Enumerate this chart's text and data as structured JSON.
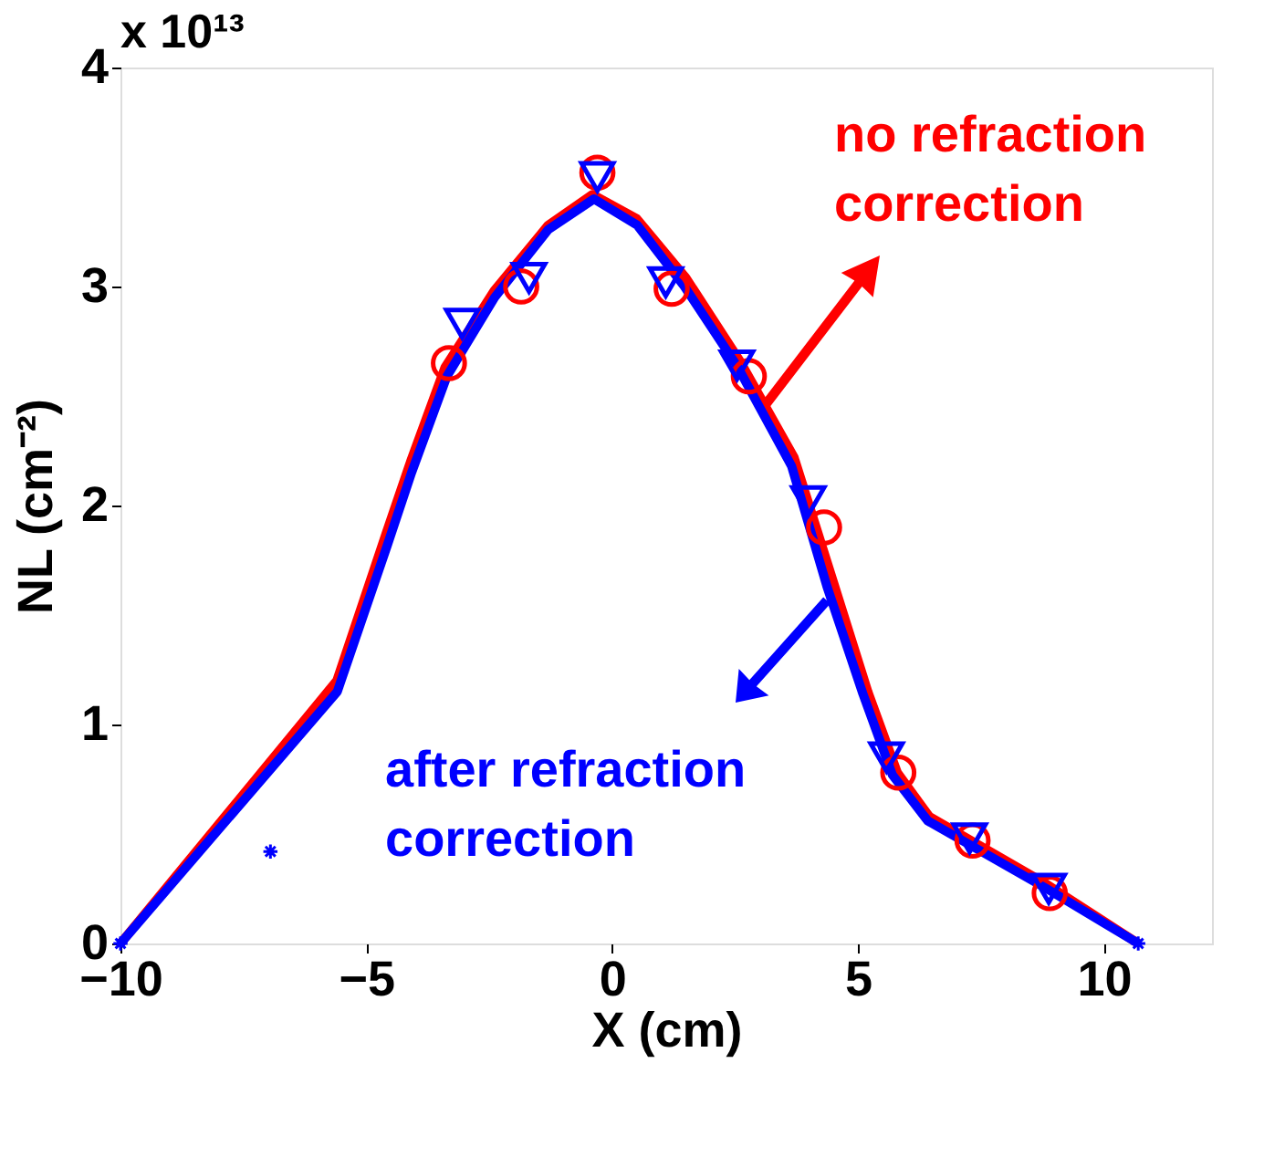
{
  "chart_data": {
    "type": "line",
    "xlabel": "X (cm)",
    "ylabel": "NL (cm⁻²)",
    "xlim": [
      -10,
      12.2
    ],
    "xticks": [
      -10,
      -5,
      0,
      5,
      10
    ],
    "ylim": [
      0,
      4
    ],
    "yticks": [
      0,
      1,
      2,
      3,
      4
    ],
    "grid": false,
    "series": [
      {
        "color": "#ff0000",
        "line_style": "solid",
        "marker": "none",
        "x": [
          -10,
          -5.6,
          -4.6,
          -4.1,
          -3.4,
          -2.4,
          -1.3,
          -0.4,
          0.5,
          1.5,
          2.6,
          3.7,
          4.5,
          5.2,
          5.8,
          6.45,
          8.84,
          10.7
        ],
        "values": [
          0,
          1.2,
          1.87,
          2.2,
          2.63,
          2.98,
          3.28,
          3.42,
          3.31,
          3.04,
          2.66,
          2.22,
          1.65,
          1.15,
          0.78,
          0.58,
          0.27,
          0
        ]
      },
      {
        "color": "#0000ff",
        "line_style": "solid",
        "marker": "none",
        "x": [
          -10,
          -5.59,
          -4.57,
          -4.08,
          -3.36,
          -2.39,
          -1.3,
          -0.37,
          0.51,
          1.47,
          2.56,
          3.65,
          4.37,
          5.1,
          5.7,
          6.42,
          8.84,
          10.7
        ],
        "values": [
          0,
          1.15,
          1.82,
          2.15,
          2.59,
          2.95,
          3.26,
          3.4,
          3.28,
          3.0,
          2.63,
          2.18,
          1.63,
          1.14,
          0.77,
          0.56,
          0.25,
          0
        ]
      },
      {
        "type": "scatter",
        "color": "#ff0000",
        "marker": "circle",
        "x": [
          -3.32,
          -1.85,
          -0.3,
          1.21,
          2.78,
          4.31,
          5.82,
          7.33,
          8.9
        ],
        "values": [
          2.65,
          3.0,
          3.52,
          2.99,
          2.59,
          1.9,
          0.78,
          0.47,
          0.23
        ]
      },
      {
        "type": "scatter",
        "color": "#0000ff",
        "marker": "triangle",
        "x": [
          -3.05,
          -1.69,
          -0.3,
          1.09,
          2.54,
          3.99,
          5.58,
          7.27,
          8.88
        ],
        "values": [
          2.83,
          3.04,
          3.5,
          3.02,
          2.64,
          2.02,
          0.85,
          0.48,
          0.25
        ]
      },
      {
        "type": "scatter",
        "color": "#0000ff",
        "marker": "cross",
        "x": [
          -10,
          -6.95,
          10.7
        ],
        "values": [
          0,
          0.42,
          0
        ]
      }
    ],
    "annotations": [
      "no refraction\ncorrection",
      "after refraction\ncorrection",
      "x 10¹³"
    ]
  }
}
